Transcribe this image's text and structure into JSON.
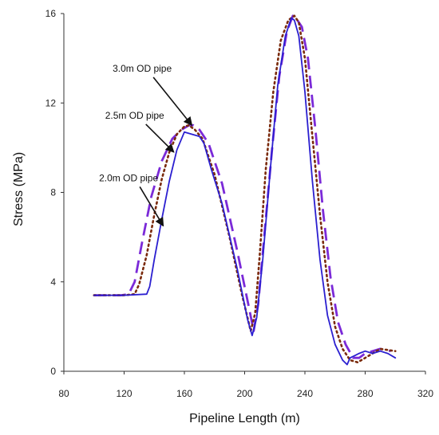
{
  "chart_data": {
    "type": "line",
    "title": "",
    "xlabel": "Pipeline Length (m)",
    "ylabel": "Stress (MPa)",
    "xlim": [
      80,
      320
    ],
    "ylim": [
      0,
      16
    ],
    "xticks": [
      "80",
      "120",
      "160",
      "200",
      "240",
      "280",
      "320"
    ],
    "yticks": [
      "0",
      "4",
      "8",
      "12",
      "16"
    ],
    "grid": false,
    "legend": "none",
    "series": [
      {
        "name": "2.0m OD pipe",
        "color": "#2b1fd0",
        "dash": "solid",
        "x": [
          100,
          120,
          135,
          137,
          140,
          145,
          150,
          155,
          160,
          165,
          170,
          173,
          178,
          185,
          195,
          202,
          205,
          208,
          212,
          217,
          222,
          227,
          231,
          233,
          236,
          240,
          245,
          250,
          255,
          260,
          265,
          268,
          270,
          273,
          276,
          280,
          285,
          290,
          295,
          300
        ],
        "y": [
          3.4,
          3.4,
          3.45,
          3.8,
          5.0,
          6.8,
          8.5,
          9.9,
          10.7,
          10.6,
          10.5,
          10.2,
          9.0,
          7.5,
          4.6,
          2.3,
          1.6,
          2.4,
          5.0,
          9.0,
          12.8,
          15.0,
          15.8,
          15.7,
          15.0,
          12.5,
          8.5,
          5.0,
          2.5,
          1.2,
          0.5,
          0.3,
          0.6,
          0.7,
          0.8,
          0.9,
          0.8,
          0.9,
          0.8,
          0.6
        ]
      },
      {
        "name": "2.5m OD pipe",
        "color": "#7a2a0c",
        "dash": "dotted",
        "x": [
          100,
          120,
          127,
          130,
          135,
          140,
          145,
          150,
          155,
          160,
          163,
          167,
          172,
          180,
          190,
          198,
          204,
          207,
          210,
          214,
          219,
          224,
          229,
          233,
          236,
          240,
          245,
          250,
          255,
          260,
          265,
          270,
          275,
          280,
          285,
          290,
          300
        ],
        "y": [
          3.4,
          3.4,
          3.45,
          3.9,
          5.2,
          7.0,
          8.6,
          9.8,
          10.6,
          10.95,
          11.0,
          10.8,
          10.4,
          8.8,
          6.0,
          3.5,
          1.8,
          2.6,
          5.2,
          9.0,
          12.5,
          14.8,
          15.7,
          15.9,
          15.6,
          14.0,
          10.5,
          7.0,
          4.0,
          2.0,
          1.0,
          0.5,
          0.4,
          0.6,
          0.8,
          1.0,
          0.9
        ]
      },
      {
        "name": "3.0m OD pipe",
        "color": "#7b2ad8",
        "dash": "dashed",
        "x": [
          100,
          118,
          123,
          127,
          132,
          138,
          145,
          152,
          158,
          163,
          166,
          170,
          176,
          185,
          195,
          203,
          206,
          209,
          213,
          218,
          223,
          228,
          232,
          234,
          238,
          242,
          247,
          252,
          257,
          262,
          267,
          272,
          276,
          280,
          285,
          290,
          297
        ],
        "y": [
          3.4,
          3.4,
          3.45,
          4.0,
          5.8,
          7.8,
          9.4,
          10.4,
          10.8,
          11.0,
          11.0,
          10.8,
          10.2,
          8.4,
          5.4,
          2.8,
          1.8,
          3.0,
          6.0,
          9.8,
          13.2,
          15.2,
          15.9,
          15.8,
          15.4,
          14.0,
          10.8,
          7.2,
          4.2,
          2.2,
          1.2,
          0.6,
          0.6,
          0.8,
          0.9,
          1.0,
          0.9
        ]
      }
    ],
    "annotations": [
      {
        "text": "3.0m OD pipe",
        "x": 132,
        "y": 13.4,
        "arrow_to": [
          165,
          11.0
        ],
        "series": "3.0m OD pipe"
      },
      {
        "text": "2.5m OD pipe",
        "x": 127,
        "y": 11.3,
        "arrow_to": [
          153,
          9.8
        ],
        "series": "2.5m OD pipe"
      },
      {
        "text": "2.0m OD pipe",
        "x": 123,
        "y": 8.5,
        "arrow_to": [
          146,
          6.5
        ],
        "series": "2.0m OD pipe"
      }
    ]
  }
}
